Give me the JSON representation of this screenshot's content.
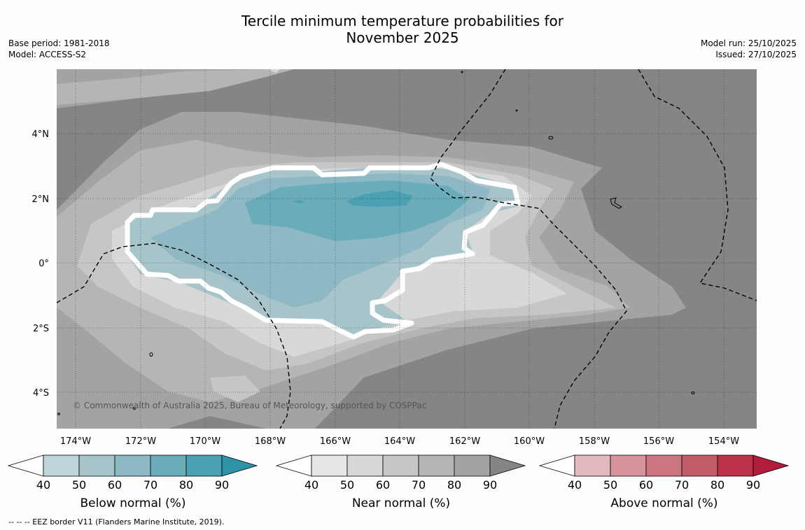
{
  "title": {
    "line1": "Tercile minimum temperature probabilities for",
    "line2": "November 2025"
  },
  "meta_left": {
    "base_period": "Base period: 1981-2018",
    "model": "Model: ACCESS-S2"
  },
  "meta_right": {
    "model_run": "Model run: 25/10/2025",
    "issued": "Issued: 27/10/2025"
  },
  "map": {
    "lat_labels": [
      "4°N",
      "2°N",
      "0°",
      "2°S",
      "4°S"
    ],
    "lon_labels": [
      "174°W",
      "172°W",
      "170°W",
      "168°W",
      "166°W",
      "164°W",
      "162°W",
      "160°W",
      "158°W",
      "156°W",
      "154°W"
    ],
    "copyright": "© Commonwealth of Australia 2025, Bureau of Meteorology, supported by COSPPac",
    "background_color": "#858585"
  },
  "colorbars": [
    {
      "label": "Below normal (%)",
      "ticks": [
        "40",
        "50",
        "60",
        "70",
        "80",
        "90"
      ],
      "colors": [
        "#bdd4da",
        "#a6c4ca",
        "#8db8c4",
        "#6bacbb",
        "#4ba1b2",
        "#2f93a8"
      ]
    },
    {
      "label": "Near normal (%)",
      "ticks": [
        "40",
        "50",
        "60",
        "70",
        "80",
        "90"
      ],
      "colors": [
        "#e6e6e6",
        "#d8d8d8",
        "#c6c6c6",
        "#b5b5b5",
        "#a3a3a3",
        "#858585"
      ]
    },
    {
      "label": "Above normal (%)",
      "ticks": [
        "40",
        "50",
        "60",
        "70",
        "80",
        "90"
      ],
      "colors": [
        "#e3b8be",
        "#d8949c",
        "#cb7680",
        "#c35c69",
        "#bb3248",
        "#b01c3c"
      ]
    }
  ],
  "footnote": "-- -- -- EEZ border V11 (Flanders Marine Institute, 2019)."
}
